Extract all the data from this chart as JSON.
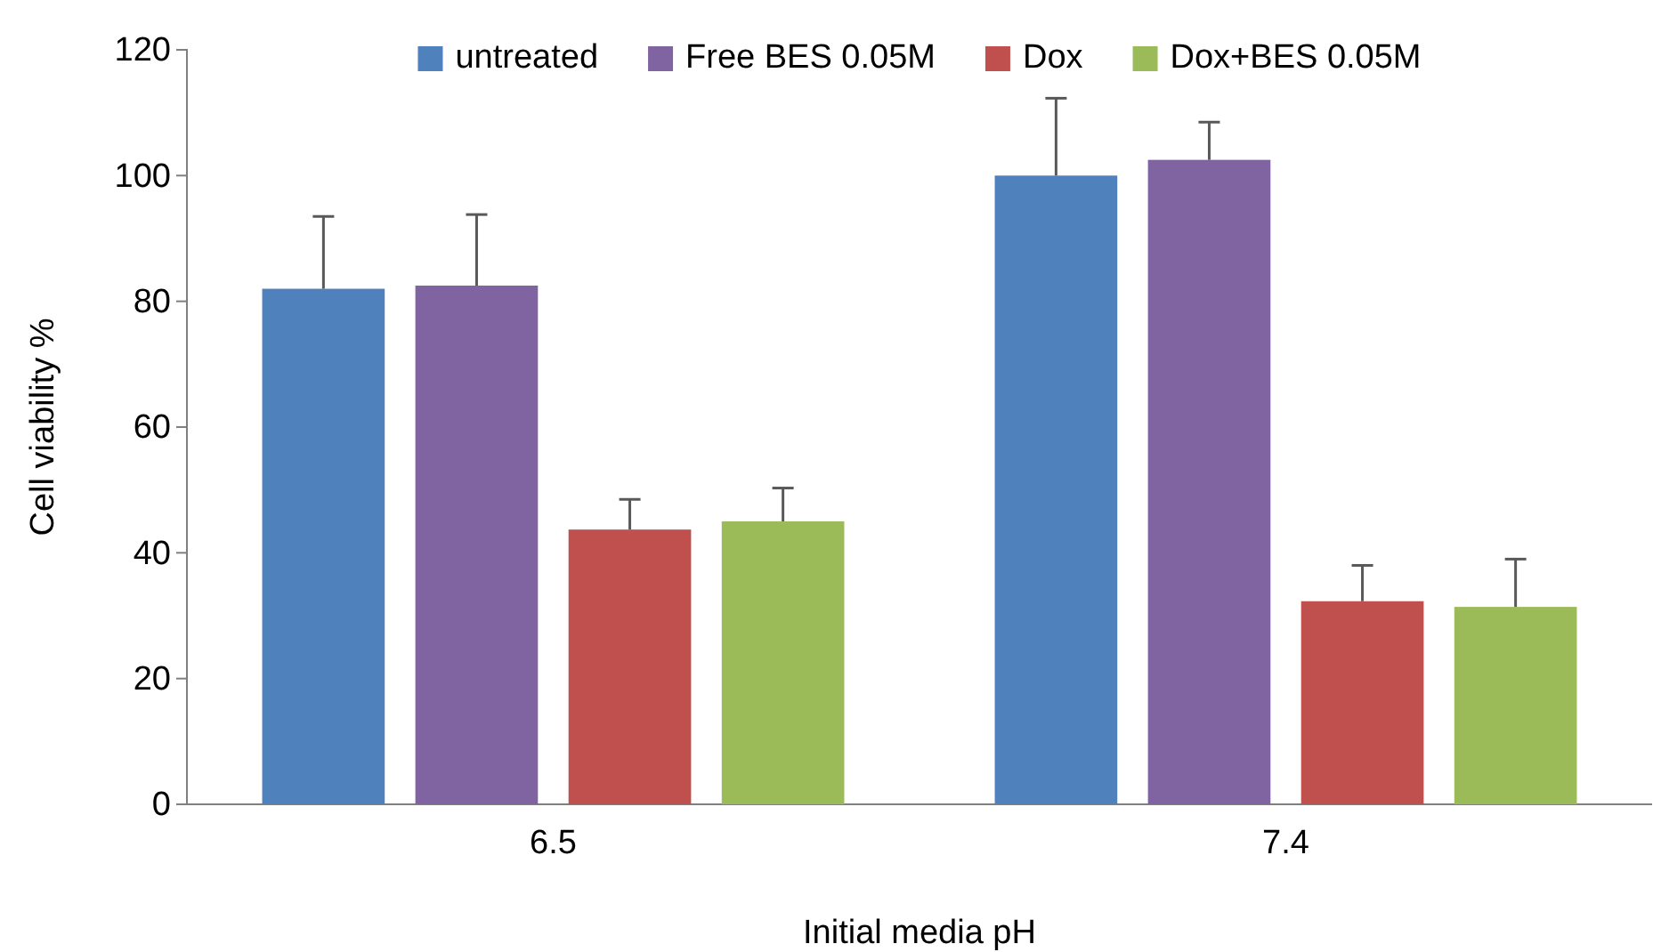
{
  "chart_data": {
    "type": "bar",
    "xlabel": "Initial media pH",
    "ylabel": "Cell viability %",
    "categories": [
      "6.5",
      "7.4"
    ],
    "series": [
      {
        "name": "untreated",
        "color": "#4f81bd",
        "values": [
          82,
          100
        ],
        "errors": [
          [
            82,
            93.5
          ],
          [
            100,
            112.3
          ]
        ]
      },
      {
        "name": "Free BES 0.05M",
        "color": "#8064a2",
        "values": [
          82.5,
          102.5
        ],
        "errors": [
          [
            82.5,
            93.8
          ],
          [
            102.5,
            108.5
          ]
        ]
      },
      {
        "name": "Dox",
        "color": "#c0504d",
        "values": [
          43.7,
          32.3
        ],
        "errors": [
          [
            43.7,
            48.5
          ],
          [
            32.3,
            38
          ]
        ]
      },
      {
        "name": "Dox+BES 0.05M",
        "color": "#9bbb59",
        "values": [
          45,
          31.4
        ],
        "errors": [
          [
            45,
            50.3
          ],
          [
            31.4,
            39
          ]
        ]
      }
    ],
    "ylim": [
      0,
      120
    ],
    "yticks": [
      0,
      20,
      40,
      60,
      80,
      100,
      120
    ],
    "grid": false,
    "legend": "top"
  }
}
